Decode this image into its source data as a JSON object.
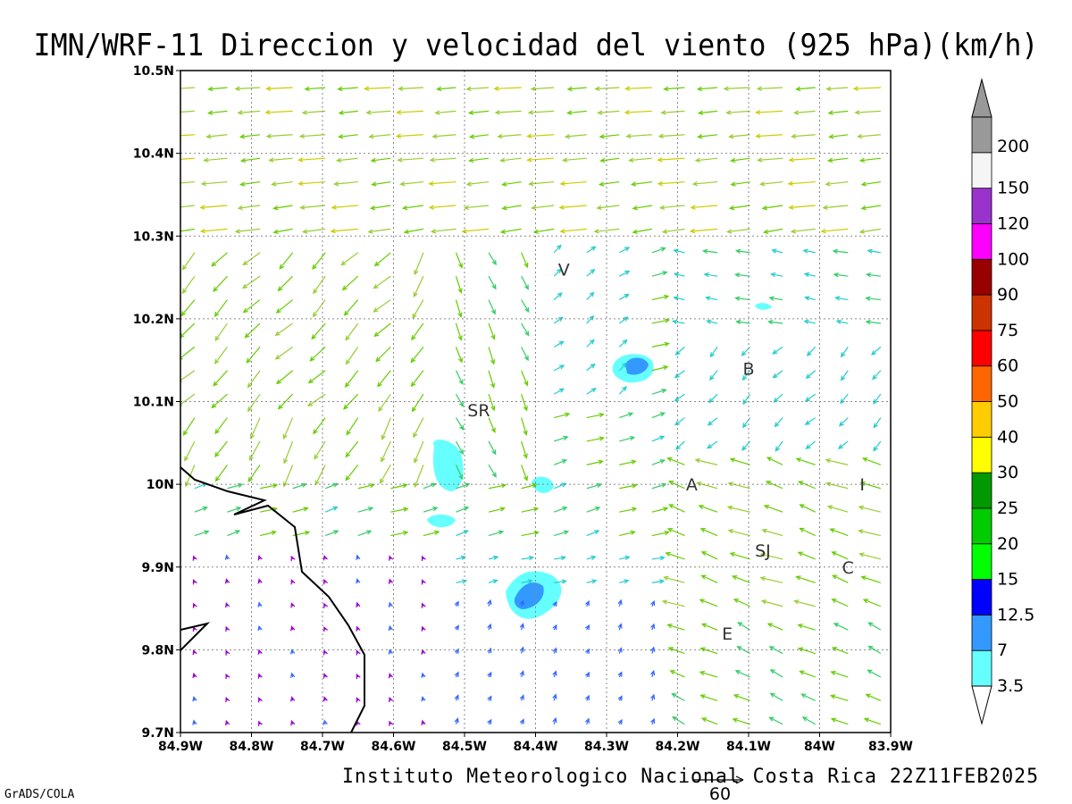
{
  "title": "IMN/WRF-11 Direccion y velocidad del viento (925 hPa)(km/h)",
  "footer": "Instituto Meteorologico Nacional Costa Rica 22Z11FEB2025",
  "credit": "GrADS/COLA",
  "reference_vector": {
    "label": "60",
    "speed": 60
  },
  "map": {
    "lon_range": [
      -84.9,
      -83.9
    ],
    "lat_range": [
      9.7,
      10.5
    ],
    "x_ticks": [
      "84.9W",
      "84.8W",
      "84.7W",
      "84.6W",
      "84.5W",
      "84.4W",
      "84.3W",
      "84.2W",
      "84.1W",
      "84W",
      "83.9W"
    ],
    "y_ticks": [
      "9.7N",
      "9.8N",
      "9.9N",
      "10N",
      "10.1N",
      "10.2N",
      "10.3N",
      "10.4N",
      "10.5N"
    ],
    "grid": true,
    "places": [
      {
        "label": "V",
        "lon": -84.36,
        "lat": 10.26
      },
      {
        "label": "B",
        "lon": -84.1,
        "lat": 10.14
      },
      {
        "label": "SR",
        "lon": -84.48,
        "lat": 10.09
      },
      {
        "label": "A",
        "lon": -84.18,
        "lat": 10.0
      },
      {
        "label": "I",
        "lon": -83.94,
        "lat": 10.0
      },
      {
        "label": "SJ",
        "lon": -84.08,
        "lat": 9.92
      },
      {
        "label": "C",
        "lon": -83.96,
        "lat": 9.9
      },
      {
        "label": "E",
        "lon": -84.13,
        "lat": 9.82
      }
    ]
  },
  "legend": {
    "levels": [
      {
        "label": "3.5",
        "color": "#66ffff"
      },
      {
        "label": "7",
        "color": "#3399ff"
      },
      {
        "label": "12.5",
        "color": "#0000ff"
      },
      {
        "label": "15",
        "color": "#00ff00"
      },
      {
        "label": "20",
        "color": "#00cc00"
      },
      {
        "label": "25",
        "color": "#009900"
      },
      {
        "label": "30",
        "color": "#ffff00"
      },
      {
        "label": "40",
        "color": "#ffcc00"
      },
      {
        "label": "50",
        "color": "#ff6600"
      },
      {
        "label": "60",
        "color": "#ff0000"
      },
      {
        "label": "75",
        "color": "#cc3300"
      },
      {
        "label": "90",
        "color": "#990000"
      },
      {
        "label": "100",
        "color": "#ff00ff"
      },
      {
        "label": "120",
        "color": "#9933cc"
      },
      {
        "label": "150",
        "color": "#f5f5f5"
      },
      {
        "label": "200",
        "color": "#999999"
      }
    ]
  }
}
